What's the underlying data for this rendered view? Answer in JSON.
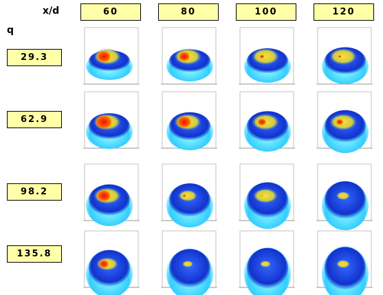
{
  "header": {
    "corner_label": "x/d",
    "row_axis_label": "q",
    "columns": [
      "60",
      "80",
      "100",
      "120"
    ]
  },
  "rows": [
    "29.3",
    "62.9",
    "98.2",
    "135.8"
  ]
}
